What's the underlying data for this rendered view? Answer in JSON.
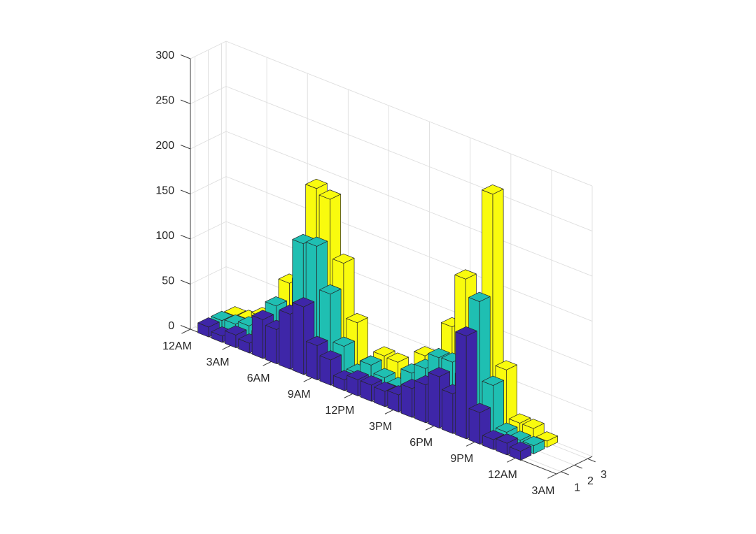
{
  "figure": {
    "background": "#FFFFFF"
  },
  "chart_data": {
    "type": "bar",
    "variant": "3d",
    "title": "",
    "xlabel": "",
    "ylabel": "",
    "zlabel": "",
    "x": [
      1,
      2,
      3,
      4,
      5,
      6,
      7,
      8,
      9,
      10,
      11,
      12,
      13,
      14,
      15,
      16,
      17,
      18,
      19,
      20,
      21,
      22,
      23,
      24
    ],
    "series": [
      {
        "name": "1",
        "color": "#3E26A8",
        "values": [
          11,
          7,
          14,
          11,
          43,
          38,
          61,
          75,
          38,
          28,
          12,
          18,
          18,
          17,
          19,
          32,
          42,
          57,
          44,
          114,
          35,
          11,
          13,
          10
        ]
      },
      {
        "name": "2",
        "color": "#1FBFB2",
        "values": [
          11,
          13,
          17,
          13,
          51,
          46,
          132,
          135,
          88,
          36,
          12,
          27,
          19,
          15,
          36,
          47,
          65,
          66,
          55,
          145,
          58,
          12,
          9,
          9
        ]
      },
      {
        "name": "3",
        "color": "#F9FB0E",
        "values": [
          9,
          11,
          20,
          9,
          69,
          76,
          186,
          180,
          115,
          55,
          14,
          30,
          29,
          18,
          48,
          10,
          92,
          151,
          90,
          257,
          68,
          15,
          15,
          7
        ]
      }
    ],
    "bar_width": 0.8,
    "time_axis": {
      "lim": [
        0,
        27
      ],
      "ticks": [
        0,
        3,
        6,
        9,
        12,
        15,
        18,
        21,
        24,
        27
      ],
      "tick_labels": [
        "12AM",
        "3AM",
        "6AM",
        "9AM",
        "12PM",
        "3PM",
        "6PM",
        "9PM",
        "12AM",
        "3AM"
      ]
    },
    "series_axis": {
      "lim": [
        0.65,
        3.35
      ],
      "ticks": [
        1,
        2,
        3
      ],
      "tick_labels": [
        "1",
        "2",
        "3"
      ]
    },
    "z_axis": {
      "lim": [
        0,
        300
      ],
      "ticks": [
        0,
        50,
        100,
        150,
        200,
        250,
        300
      ],
      "tick_labels": [
        "0",
        "50",
        "100",
        "150",
        "200",
        "250",
        "300"
      ]
    },
    "grid": true,
    "legend": null
  }
}
